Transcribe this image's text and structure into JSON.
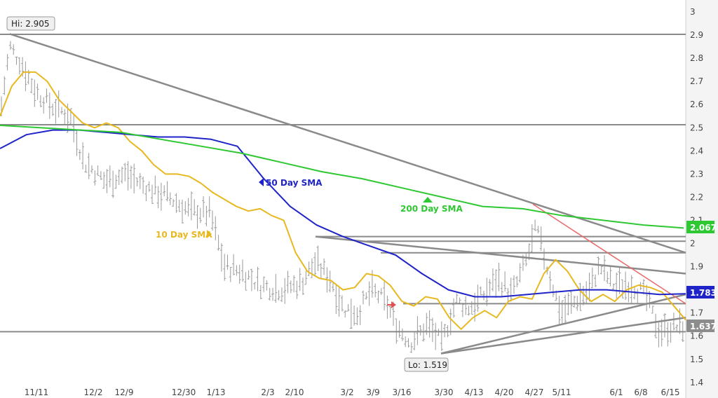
{
  "chart_data": {
    "type": "line",
    "title": "",
    "xlabel": "",
    "ylabel": "",
    "ylim": [
      1.36,
      3.05
    ],
    "y_ticks": [
      1.4,
      1.5,
      1.6,
      1.7,
      1.8,
      1.9,
      2,
      2.1,
      2.2,
      2.3,
      2.4,
      2.5,
      2.6,
      2.7,
      2.8,
      2.9,
      3
    ],
    "x_tick_labels": [
      "11/11",
      "12/2",
      "12/9",
      "12/30",
      "1/13",
      "2/3",
      "2/10",
      "3/2",
      "3/9",
      "3/16",
      "3/30",
      "4/13",
      "4/20",
      "4/27",
      "5/11",
      "6/1",
      "6/8",
      "6/15"
    ],
    "grid": false,
    "hi_label": "Hi: 2.905",
    "lo_label": "Lo: 1.519",
    "last_price_label": "1.637",
    "series": [
      {
        "name": "10 Day SMA",
        "color": "#e8b820",
        "last_value": null,
        "values": [
          2.55,
          2.68,
          2.74,
          2.74,
          2.7,
          2.62,
          2.57,
          2.52,
          2.5,
          2.52,
          2.5,
          2.44,
          2.4,
          2.34,
          2.3,
          2.3,
          2.29,
          2.26,
          2.22,
          2.19,
          2.16,
          2.14,
          2.15,
          2.12,
          2.1,
          1.96,
          1.88,
          1.85,
          1.84,
          1.8,
          1.81,
          1.87,
          1.86,
          1.82,
          1.75,
          1.73,
          1.77,
          1.76,
          1.68,
          1.63,
          1.68,
          1.71,
          1.68,
          1.75,
          1.77,
          1.76,
          1.87,
          1.93,
          1.88,
          1.8,
          1.75,
          1.78,
          1.75,
          1.8,
          1.82,
          1.81,
          1.79,
          1.73,
          1.67
        ]
      },
      {
        "name": "50 Day SMA",
        "color": "#1f24c8",
        "last_value": "1.783",
        "values": [
          2.41,
          2.47,
          2.49,
          2.49,
          2.48,
          2.47,
          2.46,
          2.46,
          2.45,
          2.42,
          2.28,
          2.16,
          2.08,
          2.03,
          1.99,
          1.95,
          1.87,
          1.8,
          1.77,
          1.77,
          1.78,
          1.79,
          1.8,
          1.8,
          1.79,
          1.78,
          1.783
        ]
      },
      {
        "name": "200 Day SMA",
        "color": "#2ec832",
        "last_value": "2.067",
        "values": [
          2.51,
          2.5,
          2.49,
          2.48,
          2.45,
          2.42,
          2.39,
          2.35,
          2.31,
          2.28,
          2.24,
          2.2,
          2.16,
          2.15,
          2.12,
          2.1,
          2.08,
          2.067
        ]
      }
    ],
    "horizontal_levels": [
      2.903,
      2.513,
      1.619
    ],
    "annotations": [
      {
        "text": "50 Day SMA",
        "color": "#1f24c8"
      },
      {
        "text": "200 Day SMA",
        "color": "#2ec832"
      },
      {
        "text": "10 Day SMA",
        "color": "#e8b820"
      }
    ]
  }
}
